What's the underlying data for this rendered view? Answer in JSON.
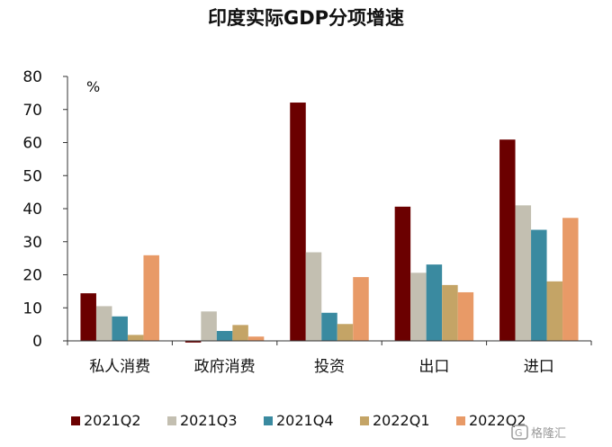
{
  "chart_data": {
    "type": "bar",
    "title": "印度实际GDP分项增速",
    "unit_label": "%",
    "categories": [
      "私人消费",
      "政府消费",
      "投资",
      "出口",
      "进口"
    ],
    "series": [
      {
        "name": "2021Q2",
        "color": "#6b0000",
        "values": [
          14.4,
          -0.5,
          72.1,
          40.6,
          60.9
        ]
      },
      {
        "name": "2021Q3",
        "color": "#c3bfb1",
        "values": [
          10.5,
          8.9,
          26.8,
          20.6,
          41.0
        ]
      },
      {
        "name": "2021Q4",
        "color": "#3a8aa0",
        "values": [
          7.4,
          3.0,
          8.5,
          23.1,
          33.6
        ]
      },
      {
        "name": "2022Q1",
        "color": "#c4a466",
        "values": [
          1.8,
          4.8,
          5.1,
          16.9,
          18.0
        ]
      },
      {
        "name": "2022Q2",
        "color": "#e89a67",
        "values": [
          25.9,
          1.3,
          19.3,
          14.7,
          37.2
        ]
      }
    ],
    "ylim": [
      0,
      80
    ],
    "yticks": [
      0,
      10,
      20,
      30,
      40,
      50,
      60,
      70,
      80
    ],
    "grid": false,
    "legend_position": "bottom"
  },
  "watermark": {
    "text": "格隆汇",
    "icon": "logo-icon"
  }
}
